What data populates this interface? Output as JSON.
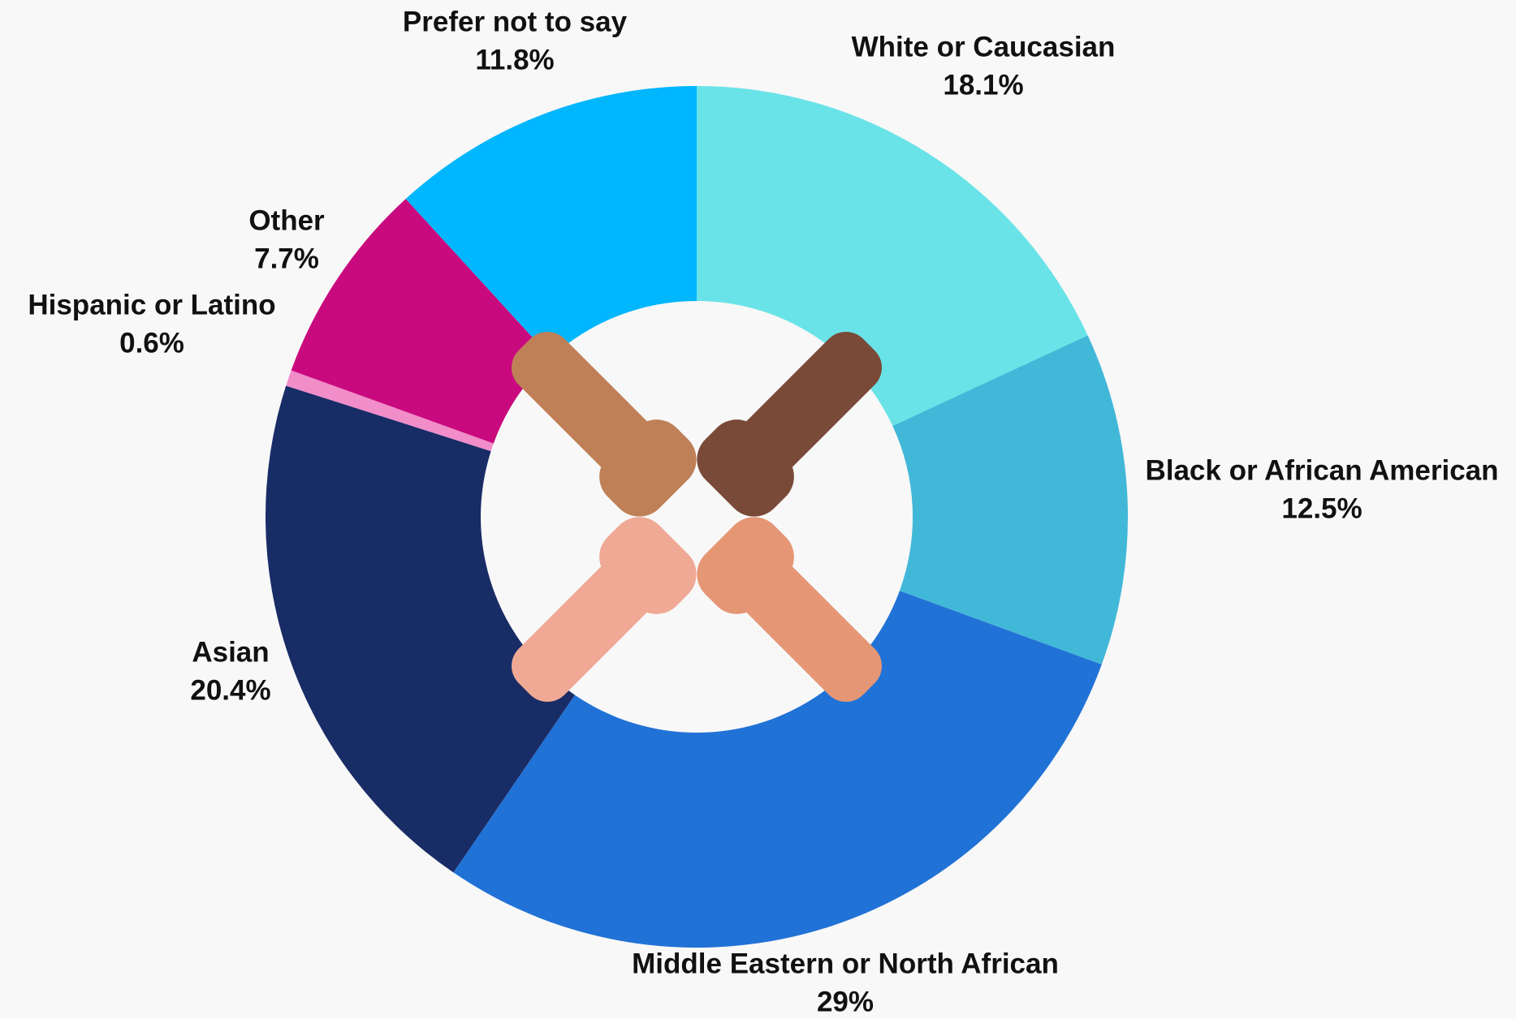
{
  "chart_data": {
    "type": "donut",
    "categories": [
      "White or Caucasian",
      "Black or African American",
      "Middle Eastern or North African",
      "Asian",
      "Hispanic or Latino",
      "Other",
      "Prefer not to say"
    ],
    "values": [
      18.1,
      12.5,
      29,
      20.4,
      0.6,
      7.7,
      11.8
    ],
    "value_labels": [
      "18.1%",
      "12.5%",
      "29%",
      "20.4%",
      "0.6%",
      "7.7%",
      "11.8%"
    ],
    "colors": [
      "#6ae3e8",
      "#42b8d8",
      "#2172d6",
      "#182c66",
      "#f18dc9",
      "#c90a7e",
      "#00b6fc"
    ]
  }
}
